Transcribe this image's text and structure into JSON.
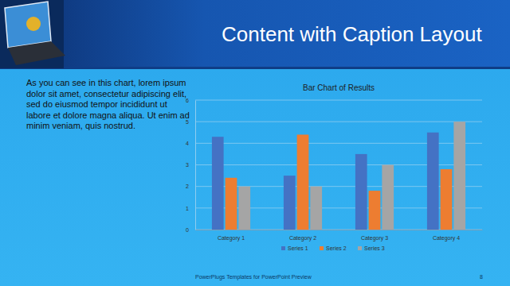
{
  "slide": {
    "title": "Content with Caption Layout",
    "caption": "As you can see in this chart, lorem ipsum dolor sit amet, consectetur adipiscing elit, sed do eiusmod tempor incididunt ut labore et dolore magna aliqua. Ut enim ad minim veniam, quis nostrud.",
    "footer": "PowerPlugs Templates for PowerPoint Preview",
    "page_number": 8
  },
  "chart_data": {
    "type": "bar",
    "title": "Bar Chart of Results",
    "categories": [
      "Category 1",
      "Category 2",
      "Category 3",
      "Category 4"
    ],
    "series": [
      {
        "name": "Series 1",
        "color": "#4472c4",
        "values": [
          4.3,
          2.5,
          3.5,
          4.5
        ]
      },
      {
        "name": "Series 2",
        "color": "#ed7d31",
        "values": [
          2.4,
          4.4,
          1.8,
          2.8
        ]
      },
      {
        "name": "Series 3",
        "color": "#a5a5a5",
        "values": [
          2,
          2,
          3,
          5
        ]
      }
    ],
    "ylim": [
      0,
      6
    ],
    "yticks": [
      0,
      1,
      2,
      3,
      4,
      5,
      6
    ],
    "grid": true,
    "legend": "bottom"
  }
}
